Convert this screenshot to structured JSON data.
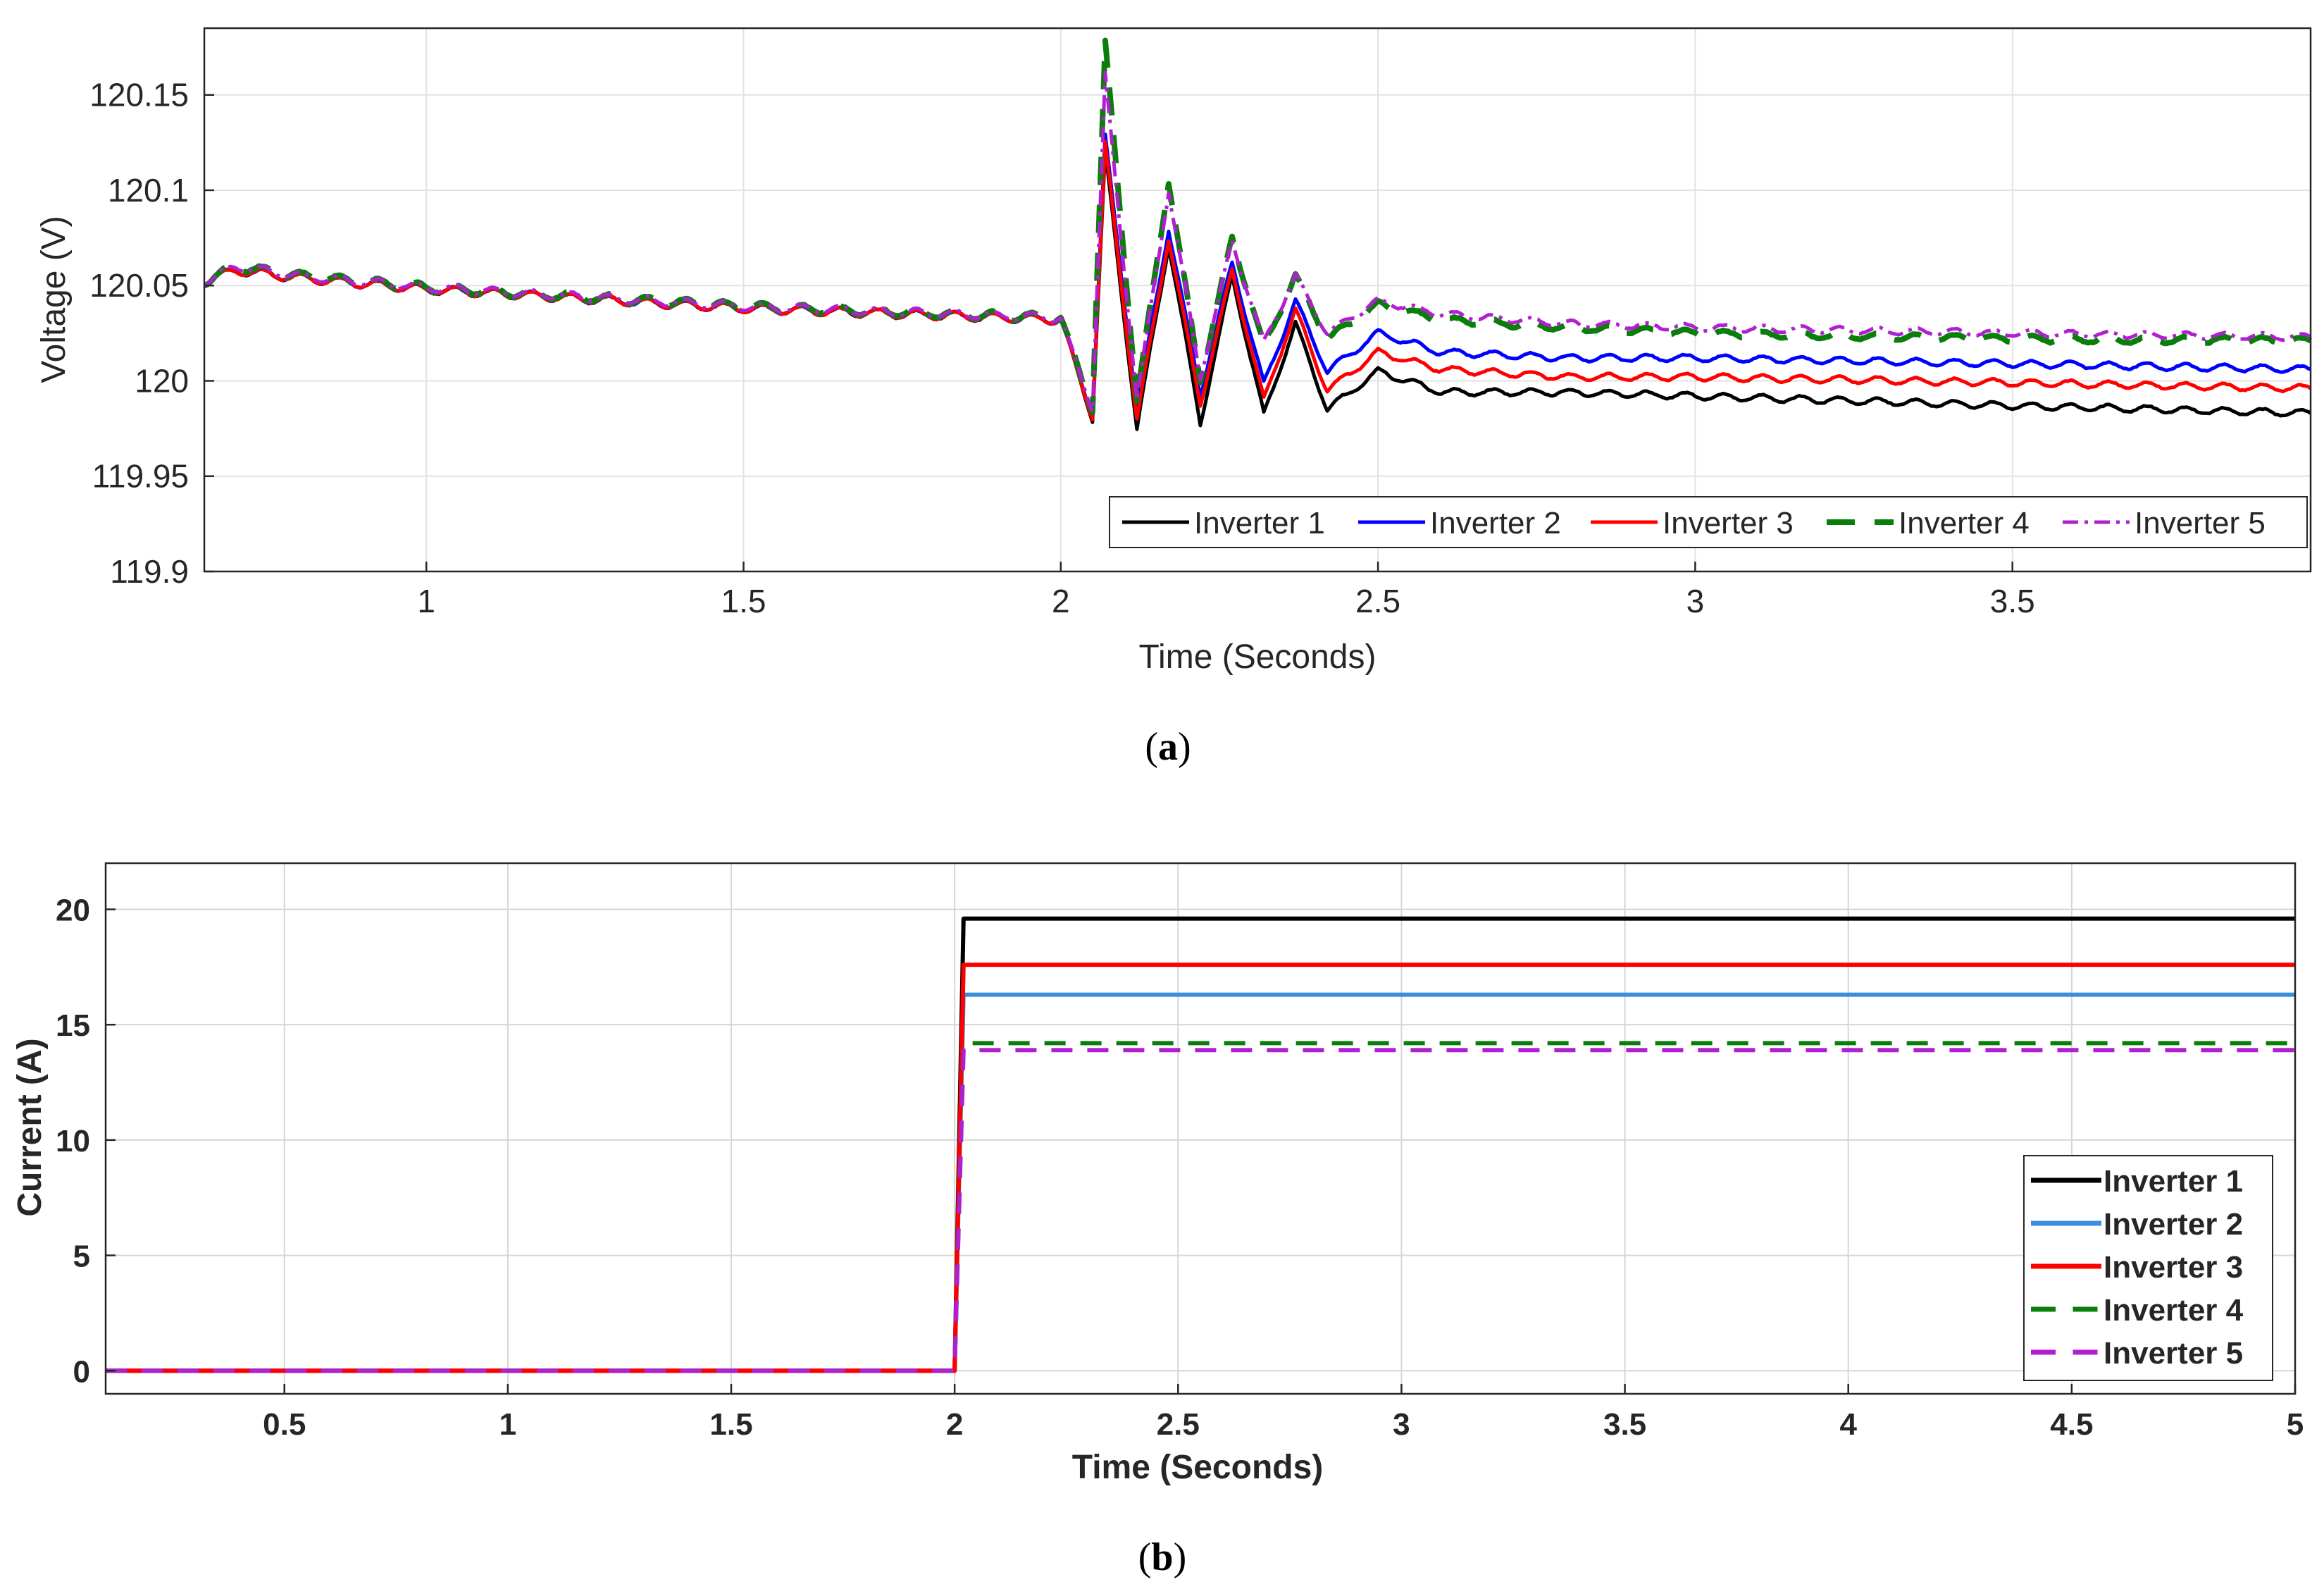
{
  "chart_data": [
    {
      "type": "line",
      "caption": "a",
      "xlabel": "Time (Seconds)",
      "ylabel": "Voltage (V)",
      "xlim": [
        0.65,
        3.97
      ],
      "ylim": [
        119.9,
        120.185
      ],
      "xticks": [
        "1",
        "1.5",
        "2",
        "2.5",
        "3",
        "3.5"
      ],
      "yticks": [
        "119.9",
        "119.95",
        "120",
        "120.05",
        "120.1",
        "120.15"
      ],
      "grid": true,
      "legend_position": "bottom-right",
      "series": [
        {
          "name": "Inverter 1",
          "color": "#000000",
          "style": "solid",
          "x": [
            0.65,
            0.7,
            0.8,
            1.0,
            1.5,
            2.0,
            2.05,
            2.07,
            2.12,
            2.17,
            2.22,
            2.27,
            2.32,
            2.37,
            2.42,
            2.5,
            2.6,
            2.8,
            3.0,
            3.5,
            3.97
          ],
          "y": [
            120.052,
            120.058,
            120.054,
            120.048,
            120.038,
            120.032,
            119.98,
            120.12,
            119.975,
            120.072,
            119.978,
            120.055,
            119.982,
            120.03,
            119.985,
            120.005,
            119.994,
            119.994,
            119.992,
            119.987,
            119.983
          ]
        },
        {
          "name": "Inverter 2",
          "color": "#0000ff",
          "style": "solid",
          "x": [
            0.65,
            0.7,
            0.8,
            1.0,
            1.5,
            2.0,
            2.05,
            2.07,
            2.12,
            2.17,
            2.22,
            2.27,
            2.32,
            2.37,
            2.42,
            2.5,
            2.6,
            2.8,
            3.0,
            3.5,
            3.97
          ],
          "y": [
            120.052,
            120.058,
            120.054,
            120.048,
            120.038,
            120.032,
            119.982,
            120.128,
            119.985,
            120.08,
            119.993,
            120.062,
            119.998,
            120.042,
            120.005,
            120.025,
            120.015,
            120.012,
            120.012,
            120.009,
            120.006
          ]
        },
        {
          "name": "Inverter 3",
          "color": "#ff0000",
          "style": "solid",
          "x": [
            0.65,
            0.7,
            0.8,
            1.0,
            1.5,
            2.0,
            2.05,
            2.07,
            2.12,
            2.17,
            2.22,
            2.27,
            2.32,
            2.37,
            2.42,
            2.5,
            2.6,
            2.8,
            3.0,
            3.5,
            3.97
          ],
          "y": [
            120.052,
            120.058,
            120.054,
            120.048,
            120.038,
            120.032,
            119.981,
            120.124,
            119.98,
            120.075,
            119.988,
            120.058,
            119.99,
            120.037,
            119.995,
            120.015,
            120.006,
            120.002,
            120.002,
            119.999,
            119.996
          ]
        },
        {
          "name": "Inverter 4",
          "color": "#0a7d0a",
          "style": "dashed",
          "x": [
            0.65,
            0.7,
            0.8,
            1.0,
            1.5,
            2.0,
            2.05,
            2.07,
            2.12,
            2.17,
            2.22,
            2.27,
            2.32,
            2.37,
            2.42,
            2.5,
            2.6,
            2.8,
            3.0,
            3.5,
            3.97
          ],
          "y": [
            120.052,
            120.06,
            120.055,
            120.049,
            120.039,
            120.033,
            119.985,
            120.177,
            119.99,
            120.105,
            120.0,
            120.075,
            120.018,
            120.055,
            120.022,
            120.04,
            120.032,
            120.028,
            120.025,
            120.022,
            120.021
          ]
        },
        {
          "name": "Inverter 5",
          "color": "#b020d0",
          "style": "dashdot",
          "x": [
            0.65,
            0.7,
            0.8,
            1.0,
            1.5,
            2.0,
            2.05,
            2.07,
            2.12,
            2.17,
            2.22,
            2.27,
            2.32,
            2.37,
            2.42,
            2.5,
            2.6,
            2.8,
            3.0,
            3.5,
            3.97
          ],
          "y": [
            120.052,
            120.06,
            120.055,
            120.049,
            120.039,
            120.033,
            119.985,
            120.16,
            119.99,
            120.1,
            120.002,
            120.073,
            120.02,
            120.055,
            120.025,
            120.042,
            120.035,
            120.03,
            120.028,
            120.025,
            120.023
          ]
        }
      ]
    },
    {
      "type": "line",
      "caption": "b",
      "xlabel": "Time (Seconds)",
      "ylabel": "Current (A)",
      "xlim": [
        0.1,
        5.0
      ],
      "ylim": [
        -1,
        22
      ],
      "xticks": [
        "0.5",
        "1",
        "1.5",
        "2",
        "2.5",
        "3",
        "3.5",
        "4",
        "4.5",
        "5"
      ],
      "yticks": [
        "0",
        "5",
        "10",
        "15",
        "20"
      ],
      "grid": true,
      "legend_position": "bottom-right",
      "series": [
        {
          "name": "Inverter 1",
          "color": "#000000",
          "style": "solid",
          "x": [
            0.1,
            2.0,
            2.02,
            5.0
          ],
          "y": [
            0,
            0,
            19.6,
            19.6
          ]
        },
        {
          "name": "Inverter 2",
          "color": "#3a8ee0",
          "style": "solid",
          "x": [
            0.1,
            2.0,
            2.02,
            5.0
          ],
          "y": [
            0,
            0,
            16.3,
            16.3
          ]
        },
        {
          "name": "Inverter 3",
          "color": "#ff0000",
          "style": "solid",
          "x": [
            0.1,
            2.0,
            2.02,
            5.0
          ],
          "y": [
            0,
            0,
            17.6,
            17.6
          ]
        },
        {
          "name": "Inverter 4",
          "color": "#0a7d0a",
          "style": "dashed",
          "x": [
            0.1,
            2.0,
            2.02,
            5.0
          ],
          "y": [
            0,
            0,
            14.2,
            14.2
          ]
        },
        {
          "name": "Inverter 5",
          "color": "#b020d0",
          "style": "dashed",
          "x": [
            0.1,
            2.0,
            2.02,
            5.0
          ],
          "y": [
            0,
            0,
            13.9,
            13.9
          ]
        }
      ]
    }
  ]
}
